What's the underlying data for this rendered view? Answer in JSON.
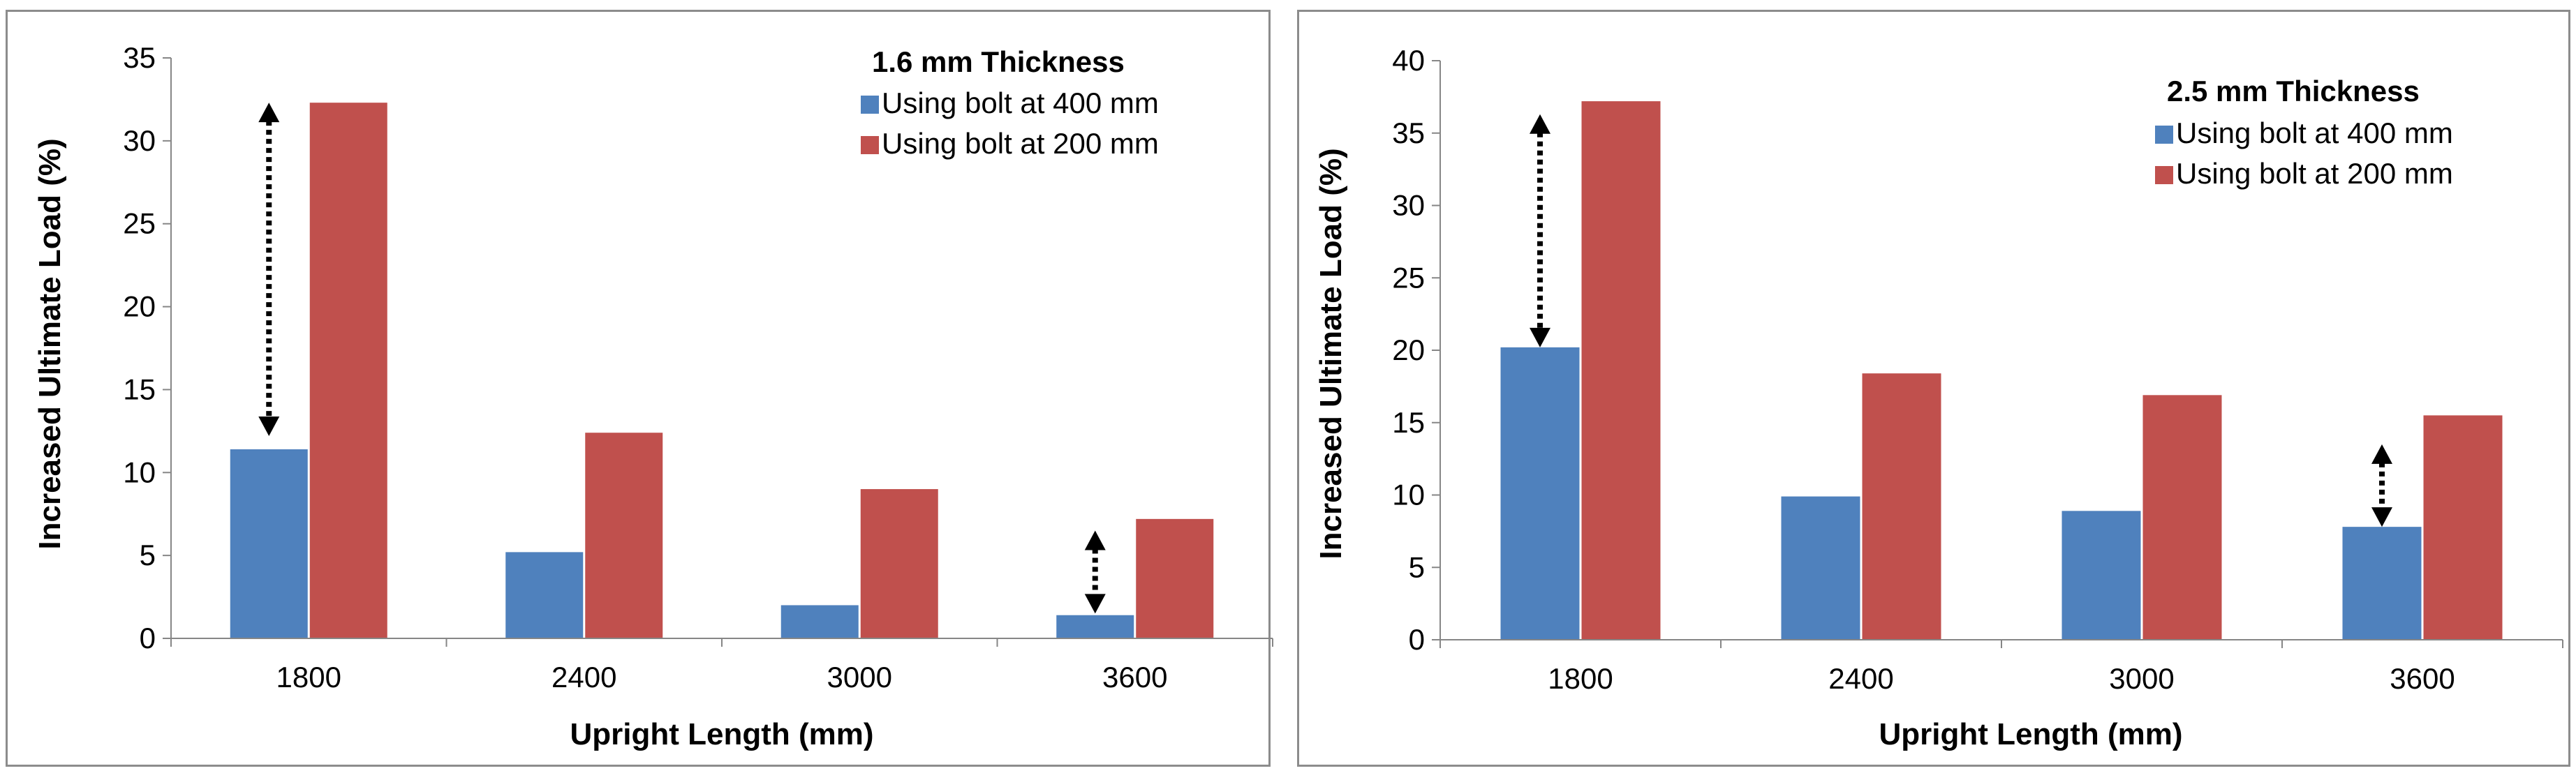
{
  "chart_data": [
    {
      "type": "bar",
      "title": "",
      "legend_title": "1.6 mm Thickness",
      "legend_position": "top-right",
      "xlabel": "Upright Length (mm)",
      "ylabel": "Increased Ultimate Load (%)",
      "categories": [
        "1800",
        "2400",
        "3000",
        "3600"
      ],
      "ylim": [
        0,
        35
      ],
      "ytick_step": 5,
      "grid": false,
      "series": [
        {
          "name": "Using bolt at 400 mm",
          "color": "#4F81BD",
          "values": [
            11.4,
            5.2,
            2.0,
            1.4
          ]
        },
        {
          "name": "Using bolt at 200 mm",
          "color": "#C0504D",
          "values": [
            32.3,
            12.4,
            9.0,
            7.2
          ]
        }
      ],
      "annotations": [
        {
          "type": "double-arrow",
          "category": "1800",
          "from": 12.2,
          "to": 32.3
        },
        {
          "type": "double-arrow",
          "category": "3600",
          "from": 1.5,
          "to": 6.5
        }
      ]
    },
    {
      "type": "bar",
      "title": "",
      "legend_title": "2.5 mm Thickness",
      "legend_position": "top-right",
      "xlabel": "Upright Length (mm)",
      "ylabel": "Increased Ultimate Load (%)",
      "categories": [
        "1800",
        "2400",
        "3000",
        "3600"
      ],
      "ylim": [
        0,
        40
      ],
      "ytick_step": 5,
      "grid": false,
      "series": [
        {
          "name": "Using bolt at 400 mm",
          "color": "#4F81BD",
          "values": [
            20.2,
            9.9,
            8.9,
            7.8
          ]
        },
        {
          "name": "Using bolt at 200 mm",
          "color": "#C0504D",
          "values": [
            37.2,
            18.4,
            16.9,
            15.5
          ]
        }
      ],
      "annotations": [
        {
          "type": "double-arrow",
          "category": "1800",
          "from": 20.2,
          "to": 36.3
        },
        {
          "type": "double-arrow",
          "category": "3600",
          "from": 7.8,
          "to": 13.5
        }
      ]
    }
  ]
}
